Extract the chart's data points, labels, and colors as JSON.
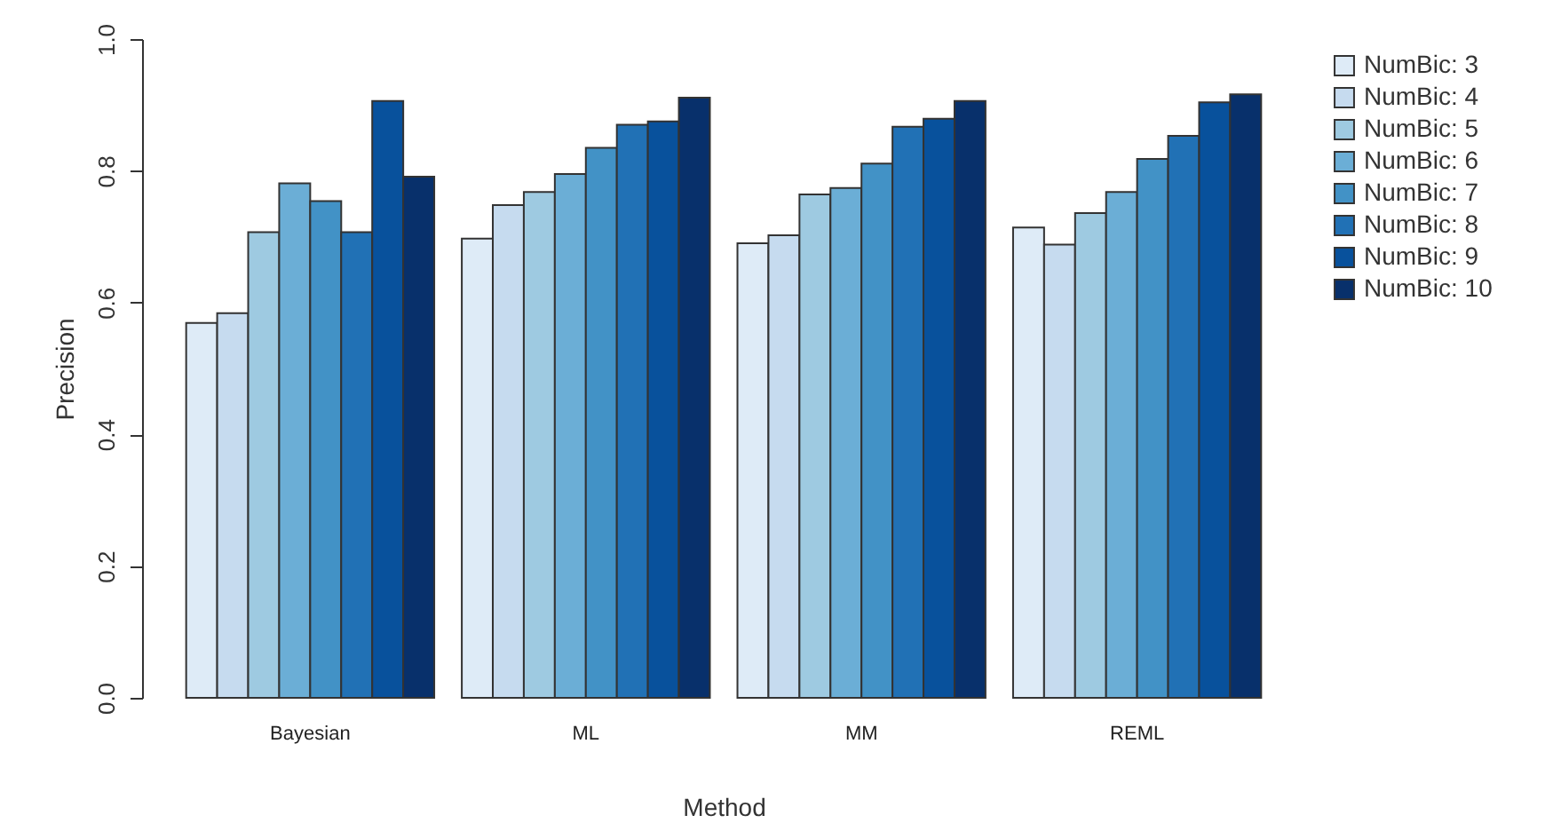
{
  "chart_data": {
    "type": "bar",
    "xlabel": "Method",
    "ylabel": "Precision",
    "categories": [
      "Bayesian",
      "ML",
      "MM",
      "REML"
    ],
    "series": [
      {
        "name": "NumBic: 3",
        "color": "#deebf7",
        "values": [
          0.569,
          0.697,
          0.69,
          0.714
        ]
      },
      {
        "name": "NumBic: 4",
        "color": "#c6dbef",
        "values": [
          0.584,
          0.748,
          0.702,
          0.688
        ]
      },
      {
        "name": "NumBic: 5",
        "color": "#9ecae1",
        "values": [
          0.707,
          0.768,
          0.764,
          0.736
        ]
      },
      {
        "name": "NumBic: 6",
        "color": "#6baed6",
        "values": [
          0.781,
          0.795,
          0.774,
          0.768
        ]
      },
      {
        "name": "NumBic: 7",
        "color": "#4292c6",
        "values": [
          0.754,
          0.835,
          0.811,
          0.818
        ]
      },
      {
        "name": "NumBic: 8",
        "color": "#2171b5",
        "values": [
          0.707,
          0.87,
          0.867,
          0.853
        ]
      },
      {
        "name": "NumBic: 9",
        "color": "#08519c",
        "values": [
          0.906,
          0.875,
          0.879,
          0.904
        ]
      },
      {
        "name": "NumBic: 10",
        "color": "#08306b",
        "values": [
          0.791,
          0.911,
          0.906,
          0.916
        ]
      }
    ],
    "ylim": [
      0,
      1
    ],
    "yticks": [
      {
        "value": 0,
        "label": "0.0"
      },
      0.2,
      0.4,
      0.6,
      0.8,
      {
        "value": 1,
        "label": "1.0"
      }
    ],
    "grid": false,
    "legend": "top right"
  }
}
